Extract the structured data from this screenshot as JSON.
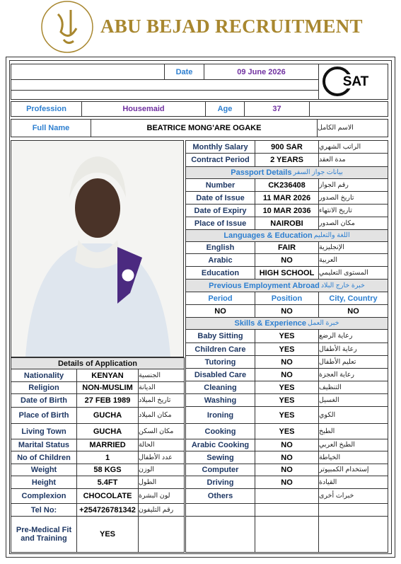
{
  "header": {
    "title": "ABU BEJAD RECRUITMENT"
  },
  "logo": {
    "text": "SAT"
  },
  "top": {
    "date_label": "Date",
    "date": "09 June 2026",
    "profession_label": "Profession",
    "profession": "Housemaid",
    "age_label": "Age",
    "age": "37",
    "full_name_label": "Full Name",
    "full_name": "BEATRICE MONG'ARE OGAKE",
    "full_name_ar": "الاسم الكامل"
  },
  "details": {
    "title": "Details of Application",
    "rows": [
      [
        "Nationality",
        "KENYAN",
        "الجنسية"
      ],
      [
        "Religion",
        "NON-MUSLIM",
        "الديانة"
      ],
      [
        "Date of Birth",
        "27 FEB 1989",
        "تاريخ الميلاد"
      ],
      [
        "Place of Birth",
        "GUCHA",
        "مكان الميلاد"
      ],
      [
        "Living Town",
        "GUCHA",
        "مكان السكن"
      ],
      [
        "Marital Status",
        "MARRIED",
        "الحالة"
      ],
      [
        "No of Children",
        "1",
        "عدد الأطفال"
      ],
      [
        "Weight",
        "58 KGS",
        "الوزن"
      ],
      [
        "Height",
        "5.4FT",
        "الطول"
      ],
      [
        "Complexion",
        "CHOCOLATE",
        "لون البشرة"
      ],
      [
        "Tel No:",
        "+254726781342",
        "رقم التليفون"
      ],
      [
        "Pre-Medical Fit and Training",
        "YES"
      ]
    ]
  },
  "salary": {
    "rows": [
      [
        "Monthly Salary",
        "900 SAR",
        "الراتب الشهري"
      ],
      [
        "Contract Period",
        "2 YEARS",
        "مدة العقد"
      ]
    ]
  },
  "passport": {
    "title": "Passport Details",
    "title_ar": "بيانات جواز السفر",
    "rows": [
      [
        "Number",
        "CK236408",
        "رقم الجواز"
      ],
      [
        "Date of Issue",
        "11 MAR 2026",
        "تاريخ الصدور"
      ],
      [
        "Date of Expiry",
        "10 MAR 2036",
        "تاريخ الانتهاء"
      ],
      [
        "Place of Issue",
        "NAIROBI",
        "مكان الصدور"
      ]
    ]
  },
  "languages": {
    "title": "Languages & Education",
    "title_ar": "اللغة والتعليم",
    "rows": [
      [
        "English",
        "FAIR",
        "الإنجليزية"
      ],
      [
        "Arabic",
        "NO",
        "العربية"
      ],
      [
        "Education",
        "HIGH SCHOOL",
        "المستوى التعليمي"
      ]
    ]
  },
  "employment": {
    "title": "Previous Employment Abroad",
    "title_ar": "خبرة خارج البلاد",
    "columns": [
      "Period",
      "Position",
      "City,   Country"
    ],
    "values": [
      "NO",
      "NO",
      "NO"
    ]
  },
  "skills": {
    "title": "Skills & Experience",
    "title_ar": "خبرة العمل",
    "rows": [
      [
        "Baby Sitting",
        "YES",
        "رعاية الرضع"
      ],
      [
        "Children Care",
        "YES",
        "رعاية الأطفال"
      ],
      [
        "Tutoring",
        "NO",
        "تعليم الأطفال"
      ],
      [
        "Disabled Care",
        "NO",
        "رعاية العجزة"
      ],
      [
        "Cleaning",
        "YES",
        "التنظيف"
      ],
      [
        "Washing",
        "YES",
        "الغسيل"
      ],
      [
        "Ironing",
        "YES",
        "الكوي"
      ],
      [
        "Cooking",
        "YES",
        "الطبخ"
      ],
      [
        "Arabic Cooking",
        "NO",
        "الطبخ العربي"
      ],
      [
        "Sewing",
        "NO",
        "الخياطة"
      ],
      [
        "Computer",
        "NO",
        "إستخدام الكمبيوتر"
      ],
      [
        "Driving",
        "NO",
        "القيادة"
      ],
      [
        "Others",
        null,
        "خبرات أخرى"
      ]
    ]
  }
}
